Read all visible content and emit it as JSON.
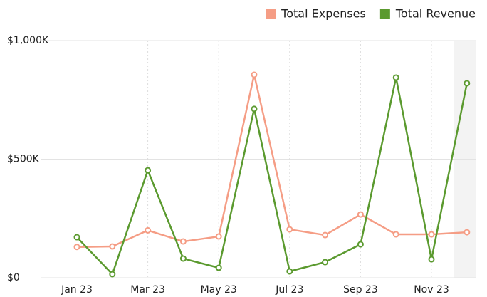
{
  "chart_data": {
    "type": "line",
    "categories": [
      "Jan 23",
      null,
      "Mar 23",
      null,
      "May 23",
      null,
      "Jul 23",
      null,
      "Sep 23",
      null,
      "Nov 23",
      null
    ],
    "series": [
      {
        "name": "Total Expenses",
        "color": "#f59d85",
        "values": [
          130000,
          132000,
          200000,
          153000,
          174000,
          856000,
          204000,
          180000,
          267000,
          183000,
          183000,
          192000
        ]
      },
      {
        "name": "Total Revenue",
        "color": "#5b9a2f",
        "values": [
          171000,
          15000,
          453000,
          81000,
          42000,
          712000,
          27000,
          66000,
          141000,
          844000,
          78000,
          820000
        ]
      }
    ],
    "ylim": [
      0,
      1000000
    ],
    "yticks": [
      {
        "value": 0,
        "label": "$0"
      },
      {
        "value": 500000,
        "label": "$500K"
      },
      {
        "value": 1000000,
        "label": "$1,000K"
      }
    ],
    "grid": true,
    "legend": "top-right"
  }
}
